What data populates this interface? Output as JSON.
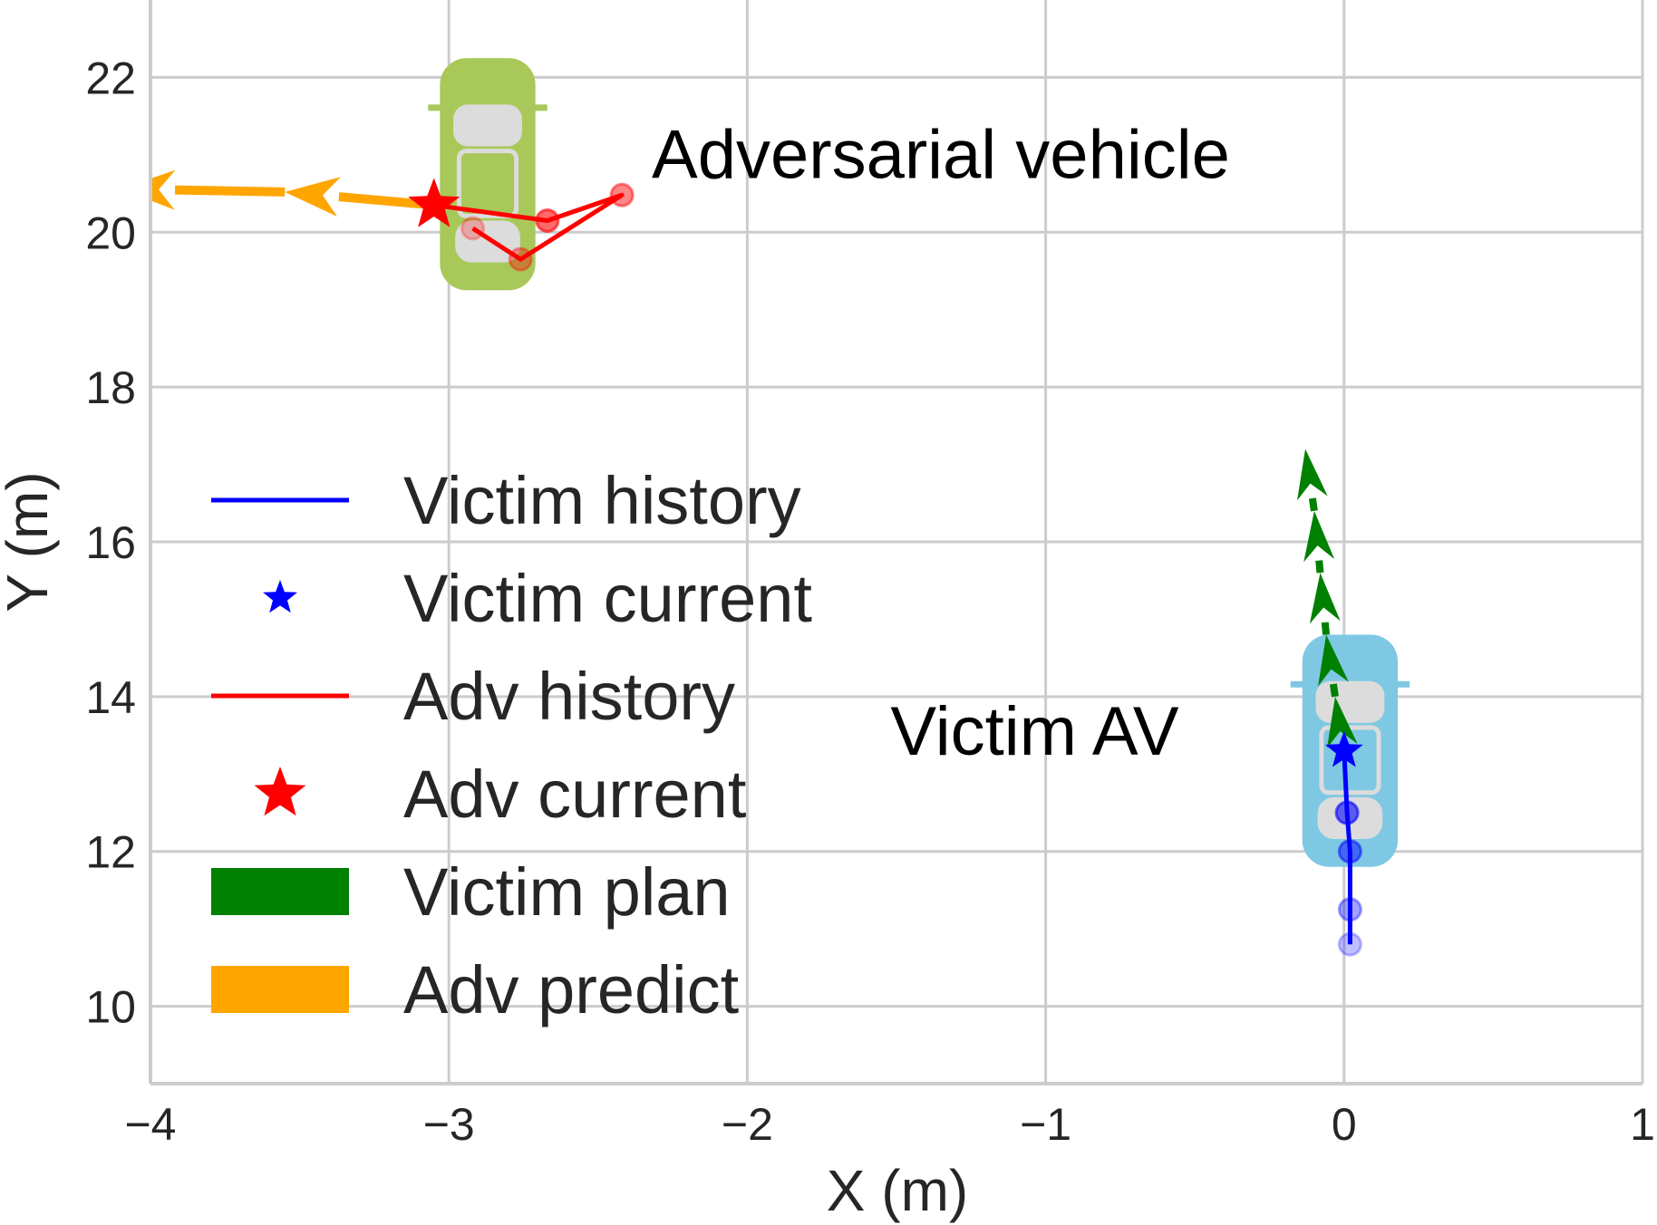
{
  "chart_data": {
    "type": "scatter",
    "xlabel": "X (m)",
    "ylabel": "Y (m)",
    "xlim": [
      -4,
      1
    ],
    "ylim": [
      9,
      23
    ],
    "xticks": [
      -4,
      -3,
      -2,
      -1,
      0,
      1
    ],
    "xtick_labels": [
      "−4",
      "−3",
      "−2",
      "−1",
      "0",
      "1"
    ],
    "yticks": [
      10,
      12,
      14,
      16,
      18,
      20,
      22
    ],
    "ytick_labels": [
      "10",
      "12",
      "14",
      "16",
      "18",
      "20",
      "22"
    ],
    "grid": true,
    "legend_position": "left",
    "annotations": [
      {
        "text": "Adversarial vehicle",
        "x": -2.32,
        "y": 20.7
      },
      {
        "text": "Victim AV",
        "x": -1.52,
        "y": 13.25
      }
    ],
    "vehicles": [
      {
        "name": "adversarial-vehicle",
        "color": "#a8c95a",
        "x": -2.87,
        "y": 20.75,
        "length": 3.0,
        "width": 0.32
      },
      {
        "name": "victim-vehicle",
        "color": "#7ec8e3",
        "x": 0.02,
        "y": 13.3,
        "length": 3.0,
        "width": 0.32
      }
    ],
    "series": [
      {
        "name": "Victim history",
        "kind": "line",
        "color": "#0000ff",
        "x": [
          0.02,
          0.02,
          0.02,
          0.01,
          0.0
        ],
        "y": [
          10.8,
          11.25,
          12.0,
          12.5,
          13.3
        ]
      },
      {
        "name": "Victim current",
        "kind": "star",
        "color": "#0000ff",
        "x": [
          0.0
        ],
        "y": [
          13.3
        ]
      },
      {
        "name": "Adv history",
        "kind": "line",
        "color": "#ff0000",
        "x": [
          -2.92,
          -2.76,
          -2.42,
          -2.67,
          -3.05
        ],
        "y": [
          20.05,
          19.65,
          20.48,
          20.15,
          20.35
        ]
      },
      {
        "name": "Adv current",
        "kind": "star",
        "color": "#ff0000",
        "x": [
          -3.05
        ],
        "y": [
          20.35
        ]
      },
      {
        "name": "Victim plan",
        "kind": "arrows",
        "color": "#008000",
        "x": [
          0.0,
          -0.03,
          -0.06,
          -0.08,
          -0.1,
          -0.13
        ],
        "y": [
          13.2,
          14.0,
          14.8,
          15.6,
          16.4,
          17.2
        ]
      },
      {
        "name": "Adv predict",
        "kind": "arrows",
        "color": "#ffa500",
        "x": [
          -3.05,
          -3.55,
          -4.1
        ],
        "y": [
          20.35,
          20.52,
          20.56
        ]
      }
    ]
  }
}
